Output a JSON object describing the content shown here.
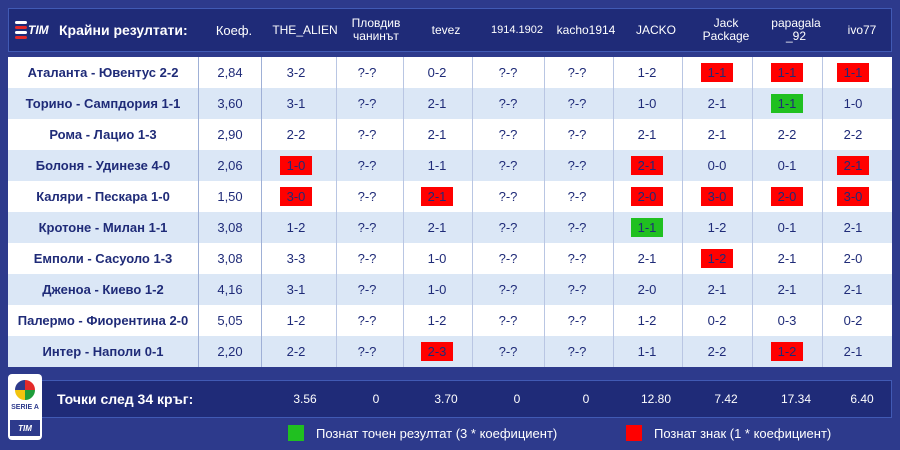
{
  "header": {
    "title": "Крайни резултати:",
    "odds_label": "Коеф.",
    "players": [
      "THE_ALIEN",
      "Пловдив чанинът",
      "tevez",
      "1914.1902",
      "kacho1914",
      "JACKO",
      "Jack Package",
      "papagala _92",
      "ivo77"
    ]
  },
  "matches": [
    {
      "match": "Аталанта - Ювентус 2-2",
      "odds": "2,84",
      "picks": [
        "3-2",
        "?-?",
        "0-2",
        "?-?",
        "?-?",
        "1-2",
        "1-1",
        "1-1",
        "1-1"
      ],
      "marks": [
        "",
        "",
        "",
        "",
        "",
        "",
        "red",
        "red",
        "red"
      ]
    },
    {
      "match": "Торино - Сампдория 1-1",
      "odds": "3,60",
      "picks": [
        "3-1",
        "?-?",
        "2-1",
        "?-?",
        "?-?",
        "1-0",
        "2-1",
        "1-1",
        "1-0"
      ],
      "marks": [
        "",
        "",
        "",
        "",
        "",
        "",
        "",
        "green",
        ""
      ]
    },
    {
      "match": "Рома - Лацио 1-3",
      "odds": "2,90",
      "picks": [
        "2-2",
        "?-?",
        "2-1",
        "?-?",
        "?-?",
        "2-1",
        "2-1",
        "2-2",
        "2-2"
      ],
      "marks": [
        "",
        "",
        "",
        "",
        "",
        "",
        "",
        "",
        ""
      ]
    },
    {
      "match": "Болоня - Удинезе 4-0",
      "odds": "2,06",
      "picks": [
        "1-0",
        "?-?",
        "1-1",
        "?-?",
        "?-?",
        "2-1",
        "0-0",
        "0-1",
        "2-1"
      ],
      "marks": [
        "red",
        "",
        "",
        "",
        "",
        "red",
        "",
        "",
        "red"
      ]
    },
    {
      "match": "Каляри - Пескара 1-0",
      "odds": "1,50",
      "picks": [
        "3-0",
        "?-?",
        "2-1",
        "?-?",
        "?-?",
        "2-0",
        "3-0",
        "2-0",
        "3-0"
      ],
      "marks": [
        "red",
        "",
        "red",
        "",
        "",
        "red",
        "red",
        "red",
        "red"
      ]
    },
    {
      "match": "Кротоне - Милан 1-1",
      "odds": "3,08",
      "picks": [
        "1-2",
        "?-?",
        "2-1",
        "?-?",
        "?-?",
        "1-1",
        "1-2",
        "0-1",
        "2-1"
      ],
      "marks": [
        "",
        "",
        "",
        "",
        "",
        "green",
        "",
        "",
        ""
      ]
    },
    {
      "match": "Емполи - Сасуоло 1-3",
      "odds": "3,08",
      "picks": [
        "3-3",
        "?-?",
        "1-0",
        "?-?",
        "?-?",
        "2-1",
        "1-2",
        "2-1",
        "2-0"
      ],
      "marks": [
        "",
        "",
        "",
        "",
        "",
        "",
        "red",
        "",
        ""
      ]
    },
    {
      "match": "Дженоа - Киево 1-2",
      "odds": "4,16",
      "picks": [
        "3-1",
        "?-?",
        "1-0",
        "?-?",
        "?-?",
        "2-0",
        "2-1",
        "2-1",
        "2-1"
      ],
      "marks": [
        "",
        "",
        "",
        "",
        "",
        "",
        "",
        "",
        ""
      ]
    },
    {
      "match": "Палермо - Фиорентина 2-0",
      "odds": "5,05",
      "picks": [
        "1-2",
        "?-?",
        "1-2",
        "?-?",
        "?-?",
        "1-2",
        "0-2",
        "0-3",
        "0-2"
      ],
      "marks": [
        "",
        "",
        "",
        "",
        "",
        "",
        "",
        "",
        ""
      ]
    },
    {
      "match": "Интер - Наполи 0-1",
      "odds": "2,20",
      "picks": [
        "2-2",
        "?-?",
        "2-3",
        "?-?",
        "?-?",
        "1-1",
        "2-2",
        "1-2",
        "2-1"
      ],
      "marks": [
        "",
        "",
        "red",
        "",
        "",
        "",
        "",
        "red",
        ""
      ]
    }
  ],
  "footer": {
    "label": "Точки след 34 кръг:",
    "points": [
      "3.56",
      "0",
      "3.70",
      "0",
      "0",
      "12.80",
      "7.42",
      "17.34",
      "6.40"
    ]
  },
  "legend": {
    "exact": "Познат точен резултат (3 * коефициент)",
    "sign": "Познат знак (1 * коефициент)"
  },
  "logos": {
    "tim": "TIM",
    "serie_a": "SERIE A"
  },
  "colors": {
    "background": "#2d3a8c",
    "header": "#1f2b78",
    "exact": "#20c020",
    "sign": "#ff0000",
    "row_alt": "#dbe7f6"
  }
}
